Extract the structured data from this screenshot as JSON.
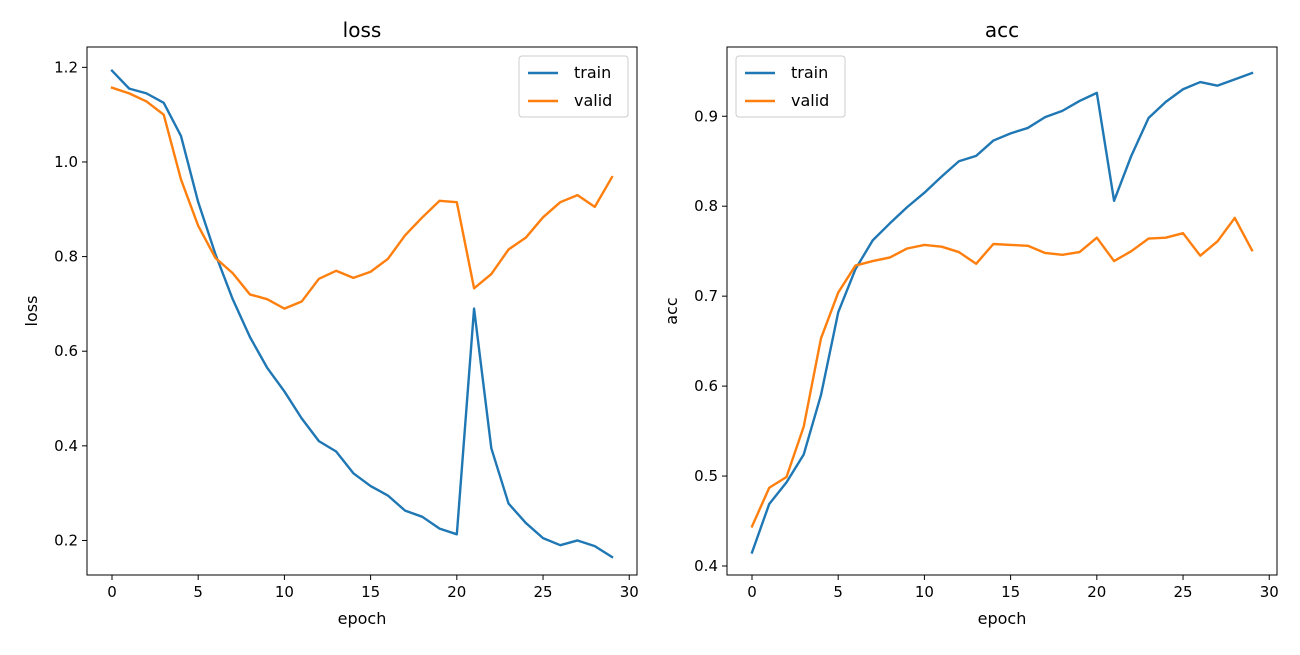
{
  "chart_data": [
    {
      "type": "line",
      "title": "loss",
      "xlabel": "epoch",
      "ylabel": "loss",
      "xlim": [
        -1.45,
        30.45
      ],
      "ylim": [
        0.127,
        1.243
      ],
      "xticks": [
        0,
        5,
        10,
        15,
        20,
        25,
        30
      ],
      "yticks": [
        0.2,
        0.4,
        0.6,
        0.8,
        1.0,
        1.2
      ],
      "ytick_labels": [
        "0.2",
        "0.4",
        "0.6",
        "0.8",
        "1.0",
        "1.2"
      ],
      "legend_position": "top-right",
      "grid": false,
      "x": [
        0,
        1,
        2,
        3,
        4,
        5,
        6,
        7,
        8,
        9,
        10,
        11,
        12,
        13,
        14,
        15,
        16,
        17,
        18,
        19,
        20,
        21,
        22,
        23,
        24,
        25,
        26,
        27,
        28,
        29
      ],
      "series": [
        {
          "name": "train",
          "color": "#1f77b4",
          "values": [
            1.193,
            1.155,
            1.145,
            1.125,
            1.055,
            0.915,
            0.805,
            0.71,
            0.63,
            0.565,
            0.515,
            0.458,
            0.41,
            0.388,
            0.342,
            0.315,
            0.295,
            0.263,
            0.25,
            0.225,
            0.213,
            0.69,
            0.395,
            0.278,
            0.237,
            0.205,
            0.19,
            0.2,
            0.188,
            0.165
          ]
        },
        {
          "name": "valid",
          "color": "#ff7f0e",
          "values": [
            1.157,
            1.145,
            1.128,
            1.1,
            0.963,
            0.865,
            0.797,
            0.765,
            0.72,
            0.71,
            0.69,
            0.705,
            0.753,
            0.77,
            0.755,
            0.768,
            0.795,
            0.845,
            0.883,
            0.918,
            0.915,
            0.733,
            0.763,
            0.815,
            0.84,
            0.883,
            0.915,
            0.93,
            0.905,
            0.968
          ]
        }
      ]
    },
    {
      "type": "line",
      "title": "acc",
      "xlabel": "epoch",
      "ylabel": "acc",
      "xlim": [
        -1.45,
        30.45
      ],
      "ylim": [
        0.39,
        0.977
      ],
      "xticks": [
        0,
        5,
        10,
        15,
        20,
        25,
        30
      ],
      "yticks": [
        0.4,
        0.5,
        0.6,
        0.7,
        0.8,
        0.9
      ],
      "ytick_labels": [
        "0.4",
        "0.5",
        "0.6",
        "0.7",
        "0.8",
        "0.9"
      ],
      "legend_position": "top-left",
      "grid": false,
      "x": [
        0,
        1,
        2,
        3,
        4,
        5,
        6,
        7,
        8,
        9,
        10,
        11,
        12,
        13,
        14,
        15,
        16,
        17,
        18,
        19,
        20,
        21,
        22,
        23,
        24,
        25,
        26,
        27,
        28,
        29
      ],
      "series": [
        {
          "name": "train",
          "color": "#1f77b4",
          "values": [
            0.415,
            0.469,
            0.493,
            0.524,
            0.59,
            0.682,
            0.73,
            0.762,
            0.781,
            0.799,
            0.815,
            0.833,
            0.85,
            0.856,
            0.873,
            0.881,
            0.887,
            0.899,
            0.906,
            0.917,
            0.926,
            0.806,
            0.856,
            0.898,
            0.916,
            0.93,
            0.938,
            0.934,
            0.941,
            0.948
          ]
        },
        {
          "name": "valid",
          "color": "#ff7f0e",
          "values": [
            0.444,
            0.487,
            0.499,
            0.555,
            0.653,
            0.704,
            0.734,
            0.739,
            0.743,
            0.753,
            0.757,
            0.755,
            0.749,
            0.736,
            0.758,
            0.757,
            0.756,
            0.748,
            0.746,
            0.749,
            0.765,
            0.739,
            0.75,
            0.764,
            0.765,
            0.77,
            0.745,
            0.761,
            0.787,
            0.751
          ]
        }
      ]
    }
  ]
}
